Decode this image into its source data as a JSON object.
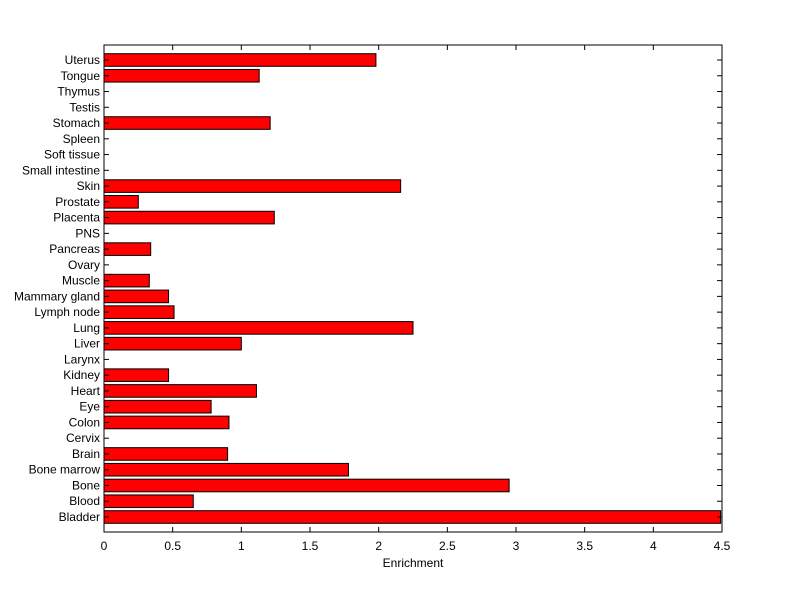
{
  "chart_data": {
    "type": "bar",
    "orientation": "horizontal",
    "title": "",
    "xlabel": "Enrichment",
    "ylabel": "",
    "xlim": [
      0,
      4.5
    ],
    "xticks": [
      0,
      0.5,
      1,
      1.5,
      2,
      2.5,
      3,
      3.5,
      4,
      4.5
    ],
    "xtick_labels": [
      "0",
      "0.5",
      "1",
      "1.5",
      "2",
      "2.5",
      "3",
      "3.5",
      "4",
      "4.5"
    ],
    "grid": false,
    "legend": "none",
    "bar_color": "#ff0000",
    "edge_color": "#000000",
    "categories": [
      "Bladder",
      "Blood",
      "Bone",
      "Bone marrow",
      "Brain",
      "Cervix",
      "Colon",
      "Eye",
      "Heart",
      "Kidney",
      "Larynx",
      "Liver",
      "Lung",
      "Lymph node",
      "Mammary gland",
      "Muscle",
      "Ovary",
      "Pancreas",
      "PNS",
      "Placenta",
      "Prostate",
      "Skin",
      "Small intestine",
      "Soft tissue",
      "Spleen",
      "Stomach",
      "Testis",
      "Thymus",
      "Tongue",
      "Uterus"
    ],
    "values": [
      4.49,
      0.65,
      2.95,
      1.78,
      0.9,
      0,
      0.91,
      0.78,
      1.11,
      0.47,
      0,
      1.0,
      2.25,
      0.51,
      0.47,
      0.33,
      0,
      0.34,
      0,
      1.24,
      0.25,
      2.16,
      0,
      0,
      0,
      1.21,
      0,
      0,
      1.13,
      1.98
    ]
  }
}
